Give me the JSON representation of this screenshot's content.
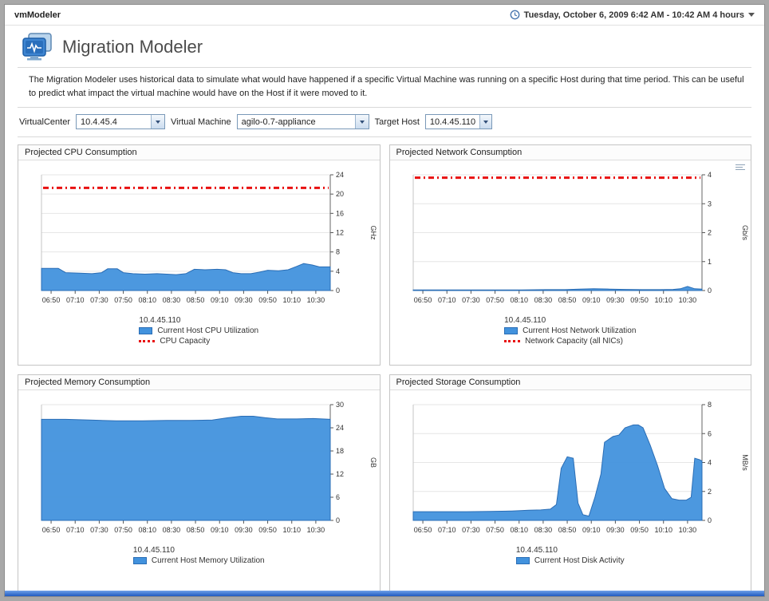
{
  "window": {
    "app_title": "vmModeler",
    "timerange_label": "Tuesday, October 6, 2009 6:42 AM - 10:42 AM 4 hours"
  },
  "header": {
    "title": "Migration Modeler",
    "description": "The Migration Modeler uses historical data to simulate what would have happened if a specific Virtual Machine was running on a specific Host during that time period. This can be useful to predict what impact the virtual machine would have on the Host if it were moved to it."
  },
  "controls": {
    "virtualcenter": {
      "label": "VirtualCenter",
      "value": "10.4.45.4"
    },
    "virtual_machine": {
      "label": "Virtual Machine",
      "value": "agilo-0.7-appliance"
    },
    "target_host": {
      "label": "Target Host",
      "value": "10.4.45.110"
    }
  },
  "colors": {
    "series_blue": "#4292dd",
    "series_blue_stroke": "#2a6db5",
    "capacity_red": "#e81010"
  },
  "chart_data": [
    {
      "type": "area",
      "title": "Projected CPU Consumption",
      "ylabel": "GHz",
      "ylim": [
        0,
        24
      ],
      "yticks": [
        0,
        4,
        8,
        12,
        16,
        20,
        24
      ],
      "x_ticks": [
        "06:50",
        "07:10",
        "07:30",
        "07:50",
        "08:10",
        "08:30",
        "08:50",
        "09:10",
        "09:30",
        "09:50",
        "10:10",
        "10:30"
      ],
      "x_tick_start": 8,
      "x_tick_step": 20,
      "x_range": [
        0,
        240
      ],
      "group_label": "10.4.45.110",
      "series": [
        {
          "name": "Current Host CPU Utilization",
          "style": "area",
          "color": "#4292dd",
          "stroke": "#2a6db5",
          "points": [
            [
              0,
              4.6
            ],
            [
              14,
              4.6
            ],
            [
              20,
              3.7
            ],
            [
              32,
              3.6
            ],
            [
              42,
              3.5
            ],
            [
              50,
              3.7
            ],
            [
              55,
              4.5
            ],
            [
              63,
              4.5
            ],
            [
              68,
              3.7
            ],
            [
              76,
              3.5
            ],
            [
              86,
              3.4
            ],
            [
              96,
              3.5
            ],
            [
              104,
              3.4
            ],
            [
              112,
              3.3
            ],
            [
              120,
              3.5
            ],
            [
              127,
              4.4
            ],
            [
              136,
              4.3
            ],
            [
              146,
              4.4
            ],
            [
              153,
              4.3
            ],
            [
              159,
              3.7
            ],
            [
              166,
              3.5
            ],
            [
              174,
              3.5
            ],
            [
              181,
              3.8
            ],
            [
              188,
              4.2
            ],
            [
              197,
              4.1
            ],
            [
              205,
              4.3
            ],
            [
              212,
              5.0
            ],
            [
              218,
              5.6
            ],
            [
              225,
              5.3
            ],
            [
              231,
              4.9
            ],
            [
              240,
              4.9
            ]
          ]
        },
        {
          "name": "CPU Capacity",
          "style": "capacity",
          "color": "#e81010",
          "value": 21.3
        }
      ]
    },
    {
      "type": "area",
      "title": "Projected Network Consumption",
      "ylabel": "Gb/s",
      "ylim": [
        0,
        4
      ],
      "yticks": [
        0,
        1,
        2,
        3,
        4
      ],
      "x_ticks": [
        "06:50",
        "07:10",
        "07:30",
        "07:50",
        "08:10",
        "08:30",
        "08:50",
        "09:10",
        "09:30",
        "09:50",
        "10:10",
        "10:30"
      ],
      "x_tick_start": 8,
      "x_tick_step": 20,
      "x_range": [
        0,
        240
      ],
      "group_label": "10.4.45.110",
      "has_menu_icon": true,
      "series": [
        {
          "name": "Current Host Network Utilization",
          "style": "area",
          "color": "#4292dd",
          "stroke": "#2a6db5",
          "points": [
            [
              0,
              0.02
            ],
            [
              30,
              0.02
            ],
            [
              60,
              0.02
            ],
            [
              90,
              0.02
            ],
            [
              110,
              0.03
            ],
            [
              126,
              0.03
            ],
            [
              138,
              0.05
            ],
            [
              150,
              0.06
            ],
            [
              163,
              0.05
            ],
            [
              176,
              0.04
            ],
            [
              190,
              0.03
            ],
            [
              205,
              0.03
            ],
            [
              216,
              0.04
            ],
            [
              222,
              0.06
            ],
            [
              228,
              0.14
            ],
            [
              234,
              0.06
            ],
            [
              240,
              0.05
            ]
          ]
        },
        {
          "name": "Network Capacity (all NICs)",
          "style": "capacity",
          "color": "#e81010",
          "value": 3.9
        }
      ]
    },
    {
      "type": "area",
      "title": "Projected Memory Consumption",
      "ylabel": "GB",
      "ylim": [
        0,
        30
      ],
      "yticks": [
        0,
        6,
        12,
        18,
        24,
        30
      ],
      "x_ticks": [
        "06:50",
        "07:10",
        "07:30",
        "07:50",
        "08:10",
        "08:30",
        "08:50",
        "09:10",
        "09:30",
        "09:50",
        "10:10",
        "10:30"
      ],
      "x_tick_start": 8,
      "x_tick_step": 20,
      "x_range": [
        0,
        240
      ],
      "group_label": "10.4.45.110",
      "series": [
        {
          "name": "Current Host Memory Utilization",
          "style": "area",
          "color": "#4292dd",
          "stroke": "#2a6db5",
          "points": [
            [
              0,
              26.2
            ],
            [
              20,
              26.2
            ],
            [
              40,
              26.0
            ],
            [
              62,
              25.8
            ],
            [
              84,
              25.8
            ],
            [
              104,
              25.9
            ],
            [
              124,
              25.9
            ],
            [
              142,
              26.0
            ],
            [
              155,
              26.6
            ],
            [
              166,
              27.0
            ],
            [
              176,
              27.0
            ],
            [
              186,
              26.6
            ],
            [
              196,
              26.3
            ],
            [
              212,
              26.3
            ],
            [
              226,
              26.4
            ],
            [
              240,
              26.2
            ]
          ]
        }
      ]
    },
    {
      "type": "area",
      "title": "Projected Storage Consumption",
      "ylabel": "MB/s",
      "ylim": [
        0,
        8
      ],
      "yticks": [
        0,
        2,
        4,
        6,
        8
      ],
      "x_ticks": [
        "06:50",
        "07:10",
        "07:30",
        "07:50",
        "08:10",
        "08:30",
        "08:50",
        "09:10",
        "09:30",
        "09:50",
        "10:10",
        "10:30"
      ],
      "x_tick_start": 8,
      "x_tick_step": 20,
      "x_range": [
        0,
        240
      ],
      "group_label": "10.4.45.110",
      "series": [
        {
          "name": "Current Host Disk Activity",
          "style": "area",
          "color": "#4292dd",
          "stroke": "#2a6db5",
          "points": [
            [
              0,
              0.6
            ],
            [
              22,
              0.6
            ],
            [
              44,
              0.6
            ],
            [
              64,
              0.62
            ],
            [
              82,
              0.65
            ],
            [
              96,
              0.7
            ],
            [
              106,
              0.72
            ],
            [
              114,
              0.78
            ],
            [
              119,
              1.1
            ],
            [
              123,
              3.6
            ],
            [
              128,
              4.4
            ],
            [
              133,
              4.3
            ],
            [
              137,
              1.2
            ],
            [
              141,
              0.4
            ],
            [
              146,
              0.3
            ],
            [
              151,
              1.6
            ],
            [
              156,
              3.2
            ],
            [
              159,
              5.4
            ],
            [
              166,
              5.8
            ],
            [
              171,
              5.9
            ],
            [
              176,
              6.4
            ],
            [
              183,
              6.6
            ],
            [
              187,
              6.6
            ],
            [
              191,
              6.4
            ],
            [
              197,
              5.2
            ],
            [
              203,
              3.8
            ],
            [
              209,
              2.2
            ],
            [
              215,
              1.5
            ],
            [
              221,
              1.4
            ],
            [
              227,
              1.4
            ],
            [
              231,
              1.6
            ],
            [
              234,
              4.3
            ],
            [
              238,
              4.2
            ],
            [
              240,
              4.1
            ]
          ]
        }
      ]
    }
  ]
}
